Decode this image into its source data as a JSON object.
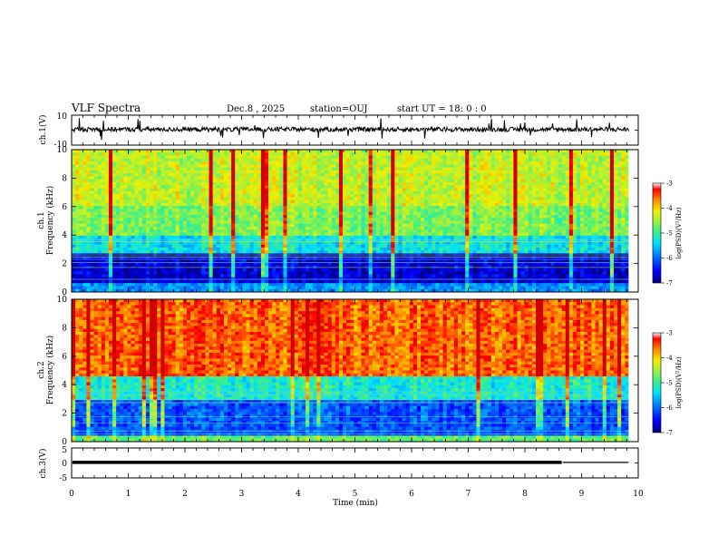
{
  "header": {
    "title": "VLF Spectra",
    "date": "Dec.8 , 2025",
    "station": "station=OUJ",
    "start": "start UT = 18: 0 : 0"
  },
  "colors": {
    "spectrum": [
      "#00007a",
      "#0000d0",
      "#0060ff",
      "#00c0ff",
      "#20e0c0",
      "#60e060",
      "#c0f040",
      "#f0f000",
      "#ff9000",
      "#ff2020",
      "#d00000"
    ]
  },
  "chart_data": [
    {
      "type": "line",
      "name": "ch1-waveform",
      "ylabel": "ch.1(V)",
      "ylim": [
        -10,
        10
      ],
      "yticks": [
        "10",
        "-10"
      ],
      "xlim": [
        0,
        10
      ],
      "description_values": {
        "baseline": 0.5,
        "noise_amplitude": 1.5
      }
    },
    {
      "type": "heatmap",
      "name": "ch1-spectrogram",
      "ylabel": "ch.1 Frequency (kHz)",
      "ylim": [
        0,
        10
      ],
      "yticks": [
        "0",
        "2",
        "4",
        "6",
        "8",
        "10"
      ],
      "xlim": [
        0,
        9.83
      ],
      "bands_khz": [
        {
          "from": 0,
          "to": 0.6,
          "level": 0.3
        },
        {
          "from": 0.6,
          "to": 2.8,
          "level": 0.08
        },
        {
          "from": 2.8,
          "to": 4.0,
          "level": 0.42
        },
        {
          "from": 4.0,
          "to": 6.0,
          "level": 0.58
        },
        {
          "from": 6.0,
          "to": 10.0,
          "level": 0.66
        }
      ],
      "colorbar": {
        "label": "log(PSD)(V²/Hz)",
        "ticks": [
          "-3",
          "-4",
          "-5",
          "-6",
          "-7"
        ],
        "range": [
          -7,
          -3
        ]
      }
    },
    {
      "type": "heatmap",
      "name": "ch2-spectrogram",
      "ylabel": "ch.2 Frequency (kHz)",
      "ylim": [
        0,
        10
      ],
      "yticks": [
        "0",
        "2",
        "4",
        "6",
        "8",
        "10"
      ],
      "xlim": [
        0,
        9.83
      ],
      "bands_khz": [
        {
          "from": 0,
          "to": 0.4,
          "level": 0.55
        },
        {
          "from": 0.4,
          "to": 3.0,
          "level": 0.22
        },
        {
          "from": 3.0,
          "to": 4.5,
          "level": 0.45
        },
        {
          "from": 4.5,
          "to": 10.0,
          "level": 0.86
        }
      ],
      "colorbar": {
        "label": "log(PSD)(V²/Hz)",
        "ticks": [
          "-3",
          "-4",
          "-5",
          "-6",
          "-7"
        ],
        "range": [
          -7,
          -3
        ]
      }
    },
    {
      "type": "line",
      "name": "ch3-waveform",
      "ylabel": "ch.3(V)",
      "ylim": [
        -5,
        5
      ],
      "yticks": [
        "5",
        "0",
        "-5"
      ],
      "xlim": [
        0,
        10
      ],
      "segments": [
        {
          "from": 0,
          "to": 8.65,
          "value": 0.2,
          "weight": "thick"
        },
        {
          "from": 8.65,
          "to": 9.83,
          "value": 0.2,
          "weight": "thin"
        }
      ]
    }
  ],
  "xaxis": {
    "label": "Time (min)",
    "ticks": [
      "0",
      "1",
      "2",
      "3",
      "4",
      "5",
      "6",
      "7",
      "8",
      "9",
      "10"
    ],
    "range": [
      0,
      10
    ]
  }
}
